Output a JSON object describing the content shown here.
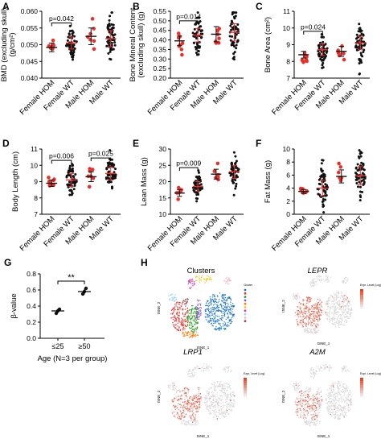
{
  "colors": {
    "hom": "#e8302b",
    "wt": "#111111",
    "cluster": [
      "#1f78c8",
      "#e8302b",
      "#2ca02c",
      "#8a5cc2",
      "#ff7f0e",
      "#f2c418",
      "#d13ab0",
      "#9bd3f0",
      "#f4b6c2",
      "#8c564b"
    ]
  },
  "cluster_palette": [
    "#1f78c8",
    "#e8302b",
    "#2ca02c",
    "#8a5cc2",
    "#ff7f0e",
    "#f2c418",
    "#d13ab0",
    "#9bd3f0",
    "#f4b6c2",
    "#8c564b"
  ],
  "groups": [
    "Female HOM",
    "Female WT",
    "Male HOM",
    "Male WT"
  ],
  "chart_data": [
    {
      "panel": "A",
      "type": "scatter",
      "ylabel_lines": [
        "BMD (excluding skull)",
        "(g/cm²)"
      ],
      "ylim": [
        0.04,
        0.06
      ],
      "yticks": [
        "0.040",
        "0.045",
        "0.050",
        "0.055",
        "0.060"
      ],
      "categories": [
        "Female HOM",
        "Female WT",
        "Male HOM",
        "Male WT"
      ],
      "means": [
        0.0492,
        0.0505,
        0.0525,
        0.0518
      ],
      "sd": [
        0.0013,
        0.0018,
        0.0025,
        0.0024
      ],
      "n": [
        8,
        60,
        7,
        60
      ],
      "spread": [
        0.0015,
        0.0025,
        0.0035,
        0.0035
      ],
      "annotations": [
        {
          "label": "p=0.042",
          "from": 0,
          "to": 1,
          "y": 0.0565
        }
      ]
    },
    {
      "panel": "B",
      "type": "scatter",
      "ylabel_lines": [
        "Bone Mineral Content",
        "(excluding skull) (g)"
      ],
      "ylim": [
        0.2,
        0.55
      ],
      "yticks": [
        "0.20",
        "0.25",
        "0.30",
        "0.35",
        "0.40",
        "0.45",
        "0.50",
        "0.55"
      ],
      "categories": [
        "Female HOM",
        "Female WT",
        "Male HOM",
        "Male WT"
      ],
      "means": [
        0.395,
        0.425,
        0.43,
        0.44
      ],
      "sd": [
        0.025,
        0.035,
        0.04,
        0.045
      ],
      "n": [
        8,
        60,
        7,
        60
      ],
      "spread": [
        0.03,
        0.06,
        0.05,
        0.065
      ],
      "annotations": [
        {
          "label": "p=0.014",
          "from": 0,
          "to": 1,
          "y": 0.5
        }
      ]
    },
    {
      "panel": "C",
      "type": "scatter",
      "ylabel_lines": [
        "Bone Area (cm²)"
      ],
      "ylim": [
        7,
        11
      ],
      "yticks": [
        "7",
        "8",
        "9",
        "10",
        "11"
      ],
      "categories": [
        "Female HOM",
        "Female WT",
        "Male HOM",
        "Male WT"
      ],
      "means": [
        8.4,
        8.7,
        8.6,
        9.1
      ],
      "sd": [
        0.2,
        0.35,
        0.3,
        0.4
      ],
      "n": [
        8,
        60,
        7,
        60
      ],
      "spread": [
        0.25,
        0.45,
        0.35,
        0.55
      ],
      "annotations": [
        {
          "label": "p=0.024",
          "from": 0,
          "to": 1,
          "y": 9.8
        }
      ]
    },
    {
      "panel": "D",
      "type": "scatter",
      "ylabel_lines": [
        "Body Length (cm)"
      ],
      "ylim": [
        7,
        11
      ],
      "yticks": [
        "7",
        "8",
        "9",
        "10",
        "11"
      ],
      "categories": [
        "Female HOM",
        "Female WT",
        "Male HOM",
        "Male WT"
      ],
      "means": [
        8.9,
        9.1,
        9.3,
        9.5
      ],
      "sd": [
        0.2,
        0.4,
        0.3,
        0.4
      ],
      "n": [
        8,
        60,
        7,
        60
      ],
      "spread": [
        0.2,
        0.5,
        0.3,
        0.55
      ],
      "annotations": [
        {
          "label": "p=0.006",
          "from": 0,
          "to": 1,
          "y": 10.3
        },
        {
          "label": "p=0.025",
          "from": 2,
          "to": 3,
          "y": 10.45
        }
      ]
    },
    {
      "panel": "E",
      "type": "scatter",
      "ylabel_lines": [
        "Lean Mass (g)"
      ],
      "ylim": [
        10,
        30
      ],
      "yticks": [
        "10",
        "15",
        "20",
        "25",
        "30"
      ],
      "categories": [
        "Female HOM",
        "Female WT",
        "Male HOM",
        "Male WT"
      ],
      "means": [
        16.5,
        18.5,
        22.3,
        23.0
      ],
      "sd": [
        1.0,
        1.5,
        1.5,
        2.0
      ],
      "n": [
        8,
        60,
        7,
        60
      ],
      "spread": [
        1.0,
        2.0,
        1.8,
        2.5
      ],
      "annotations": [
        {
          "label": "p=0.009",
          "from": 0,
          "to": 1,
          "y": 24.3
        }
      ]
    },
    {
      "panel": "F",
      "type": "scatter",
      "ylabel_lines": [
        "Fat Mass (g)"
      ],
      "ylim": [
        0,
        10
      ],
      "yticks": [
        "0",
        "2",
        "4",
        "6",
        "8",
        "10"
      ],
      "categories": [
        "Female HOM",
        "Female WT",
        "Male HOM",
        "Male WT"
      ],
      "means": [
        3.5,
        4.0,
        5.8,
        5.9
      ],
      "sd": [
        0.3,
        1.2,
        1.0,
        1.4
      ],
      "n": [
        8,
        60,
        7,
        60
      ],
      "spread": [
        0.3,
        1.6,
        1.0,
        1.8
      ],
      "annotations": []
    },
    {
      "panel": "G",
      "type": "scatter",
      "ylabel": "β-value",
      "xlabel": "Age (N=3 per group)",
      "ylim": [
        0,
        0.8
      ],
      "yticks": [
        "0.0",
        "0.2",
        "0.4",
        "0.6",
        "0.8"
      ],
      "categories": [
        "≤25",
        "≥50"
      ],
      "points": [
        [
          0.31,
          0.34,
          0.36
        ],
        [
          0.55,
          0.58,
          0.62
        ]
      ],
      "means": [
        0.34,
        0.58
      ],
      "sd": [
        0.025,
        0.035
      ],
      "annotations": [
        {
          "label": "**",
          "from": 0,
          "to": 1,
          "y": 0.71
        }
      ]
    }
  ],
  "panel_h": {
    "letter": "H",
    "tsne": [
      {
        "title": "Clusters",
        "italic": false,
        "xlabel": "tSNE_1",
        "ylabel": "tSNE_2",
        "legend_title": "Cluster"
      },
      {
        "title": "LEPR",
        "italic": true,
        "xlabel": "tSNE_1",
        "ylabel": "tSNE_2",
        "legend_title": "Expr. Level (Log)"
      },
      {
        "title": "LRP1",
        "italic": true,
        "xlabel": "tSNE_1",
        "ylabel": "tSNE_2",
        "legend_title": "Expr. Level (Log)"
      },
      {
        "title": "A2M",
        "italic": true,
        "xlabel": "tSNE_1",
        "ylabel": "tSNE_2",
        "legend_title": "Expr. Level (Log)"
      }
    ]
  }
}
